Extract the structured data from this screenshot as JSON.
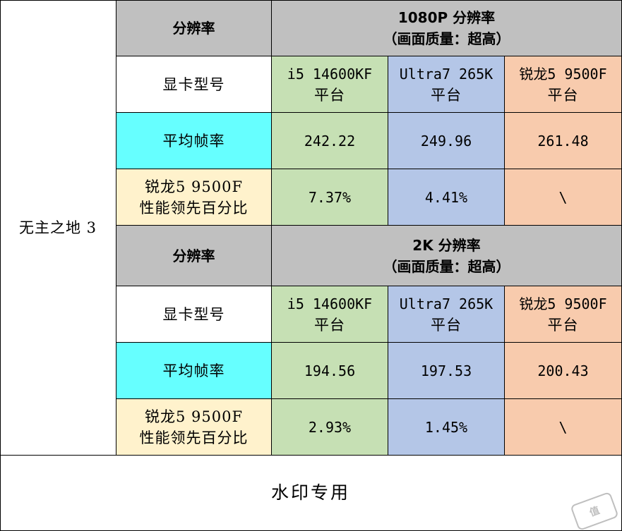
{
  "game_name": "无主之地 3",
  "sections": [
    {
      "resolution_label": "分辨率",
      "title_line1": "1080P 分辨率",
      "title_line2": "（画面质量：超高）",
      "gpu_label": "显卡型号",
      "platforms": [
        {
          "line1": "i5 14600KF",
          "line2": "平台"
        },
        {
          "line1": "Ultra7 265K",
          "line2": "平台"
        },
        {
          "line1": "锐龙5 9500F",
          "line2": "平台"
        }
      ],
      "avg_fps_label": "平均帧率",
      "avg_fps": [
        "242.22",
        "249.96",
        "261.48"
      ],
      "lead_label_line1": "锐龙5 9500F",
      "lead_label_line2": "性能领先百分比",
      "lead": [
        "7.37%",
        "4.41%",
        "\\"
      ]
    },
    {
      "resolution_label": "分辨率",
      "title_line1": "2K 分辨率",
      "title_line2": "（画面质量：超高）",
      "gpu_label": "显卡型号",
      "platforms": [
        {
          "line1": "i5 14600KF",
          "line2": "平台"
        },
        {
          "line1": "Ultra7 265K",
          "line2": "平台"
        },
        {
          "line1": "锐龙5 9500F",
          "line2": "平台"
        }
      ],
      "avg_fps_label": "平均帧率",
      "avg_fps": [
        "194.56",
        "197.53",
        "200.43"
      ],
      "lead_label_line1": "锐龙5 9500F",
      "lead_label_line2": "性能领先百分比",
      "lead": [
        "2.93%",
        "1.45%",
        "\\"
      ]
    }
  ],
  "footer_text": "水印专用",
  "watermark_logo": "smzdm-logo"
}
